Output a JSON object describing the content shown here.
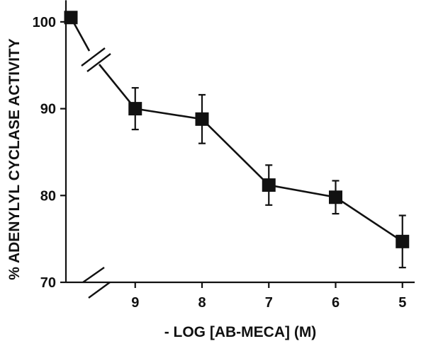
{
  "chart_data": {
    "type": "line",
    "title": "",
    "xlabel": "- LOG [AB-MECA] (M)",
    "ylabel": "% ADENYLYL CYCLASE ACTIVITY",
    "x_ticks": [
      "9",
      "8",
      "7",
      "6",
      "5"
    ],
    "y_ticks": [
      "70",
      "80",
      "90",
      "100"
    ],
    "ylim": [
      70,
      102
    ],
    "x_axis_reversed": true,
    "axis_break": "between control point and 9 on the x axis",
    "grid": false,
    "legend": "none",
    "series": [
      {
        "control_point": {
          "label": "",
          "value": 100.5
        },
        "points": [
          {
            "x": 9,
            "y": 90.0,
            "error": 2.4
          },
          {
            "x": 8,
            "y": 88.8,
            "error": 2.8
          },
          {
            "x": 7,
            "y": 81.2,
            "error": 2.3
          },
          {
            "x": 6,
            "y": 79.8,
            "error": 1.9
          },
          {
            "x": 5,
            "y": 74.7,
            "error": 3.0
          }
        ]
      }
    ],
    "colors": {
      "ink": "#111111",
      "background": "#ffffff"
    }
  }
}
